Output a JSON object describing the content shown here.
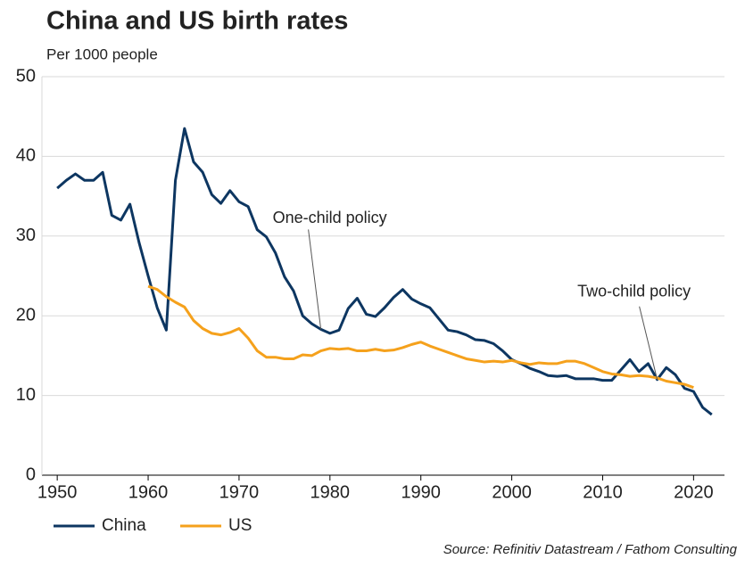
{
  "chart_data": {
    "type": "line",
    "title": "China and US birth rates",
    "subtitle": "Per 1000 people",
    "source": "Source: Refinitiv Datastream / Fathom Consulting",
    "x": [
      1950,
      1951,
      1952,
      1953,
      1954,
      1955,
      1956,
      1957,
      1958,
      1959,
      1960,
      1961,
      1962,
      1963,
      1964,
      1965,
      1966,
      1967,
      1968,
      1969,
      1970,
      1971,
      1972,
      1973,
      1974,
      1975,
      1976,
      1977,
      1978,
      1979,
      1980,
      1981,
      1982,
      1983,
      1984,
      1985,
      1986,
      1987,
      1988,
      1989,
      1990,
      1991,
      1992,
      1993,
      1994,
      1995,
      1996,
      1997,
      1998,
      1999,
      2000,
      2001,
      2002,
      2003,
      2004,
      2005,
      2006,
      2007,
      2008,
      2009,
      2010,
      2011,
      2012,
      2013,
      2014,
      2015,
      2016,
      2017,
      2018,
      2019,
      2020,
      2021,
      2022
    ],
    "series": [
      {
        "name": "China",
        "color": "#0d3661",
        "values": [
          36.0,
          37.0,
          37.8,
          37.0,
          37.0,
          38.0,
          32.6,
          32.0,
          34.0,
          29.2,
          25.0,
          21.0,
          18.2,
          37.0,
          43.5,
          39.3,
          38.0,
          35.2,
          34.1,
          35.7,
          34.3,
          33.7,
          30.8,
          29.9,
          27.9,
          24.9,
          23.1,
          20.0,
          19.0,
          18.3,
          17.8,
          18.2,
          20.9,
          22.2,
          20.2,
          19.9,
          21.0,
          22.3,
          23.3,
          22.1,
          21.5,
          21.0,
          19.6,
          18.2,
          18.0,
          17.6,
          17.0,
          16.9,
          16.5,
          15.6,
          14.5,
          14.0,
          13.4,
          13.0,
          12.5,
          12.4,
          12.5,
          12.1,
          12.1,
          12.1,
          11.9,
          11.9,
          13.2,
          14.5,
          13.0,
          14.0,
          12.0,
          13.5,
          12.6,
          10.9,
          10.5,
          8.5,
          7.6
        ]
      },
      {
        "name": "US",
        "color": "#f5a11c",
        "values": [
          null,
          null,
          null,
          null,
          null,
          null,
          null,
          null,
          null,
          null,
          23.7,
          23.3,
          22.4,
          21.7,
          21.1,
          19.4,
          18.4,
          17.8,
          17.6,
          17.9,
          18.4,
          17.2,
          15.6,
          14.8,
          14.8,
          14.6,
          14.6,
          15.1,
          15.0,
          15.6,
          15.9,
          15.8,
          15.9,
          15.6,
          15.6,
          15.8,
          15.6,
          15.7,
          16.0,
          16.4,
          16.7,
          16.2,
          15.8,
          15.4,
          15.0,
          14.6,
          14.4,
          14.2,
          14.3,
          14.2,
          14.4,
          14.1,
          13.9,
          14.1,
          14.0,
          14.0,
          14.3,
          14.3,
          14.0,
          13.5,
          13.0,
          12.7,
          12.6,
          12.4,
          12.5,
          12.4,
          12.2,
          11.8,
          11.6,
          11.4,
          11.0,
          null,
          null
        ]
      }
    ],
    "annotations": [
      {
        "text": "One-child policy",
        "x": 1979,
        "y": 18.3
      },
      {
        "text": "Two-child policy",
        "x": 2016,
        "y": 12.0
      }
    ],
    "xlim": [
      1949.2,
      2023.4
    ],
    "ylim": [
      0,
      50
    ],
    "xticks": [
      1950,
      1960,
      1970,
      1980,
      1990,
      2000,
      2010,
      2020
    ],
    "yticks": [
      0,
      10,
      20,
      30,
      40,
      50
    ],
    "grid": true,
    "legend": "bottom-left"
  }
}
